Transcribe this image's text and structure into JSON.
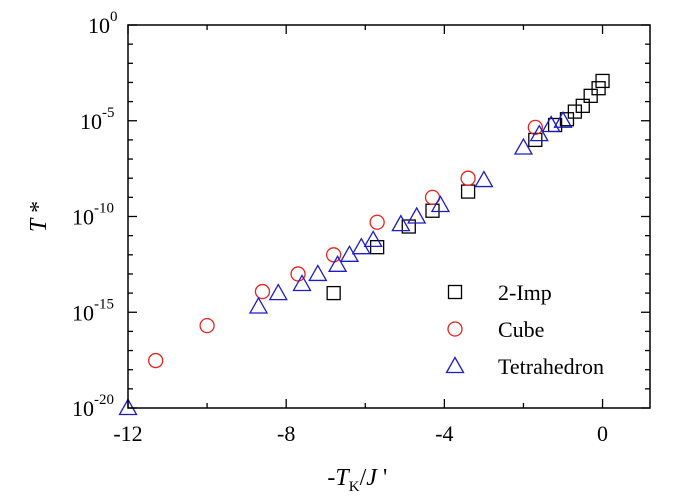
{
  "chart_data": {
    "type": "scatter",
    "title": "",
    "xlabel": "-T_K/J '",
    "ylabel": "T *",
    "xlabel_parts": {
      "prefix": "-",
      "var": "T",
      "sub": "K",
      "suffix": "/",
      "var2": "J",
      "prime": " '"
    },
    "ylabel_parts": {
      "var": "T",
      "suffix": " *"
    },
    "xlim": [
      -12,
      1.2
    ],
    "ylim": [
      1e-20,
      1
    ],
    "yscale": "log",
    "x_ticks": [
      {
        "value": -12,
        "label": "-12"
      },
      {
        "value": -8,
        "label": "-8"
      },
      {
        "value": -4,
        "label": "-4"
      },
      {
        "value": 0,
        "label": "0"
      }
    ],
    "y_ticks": [
      {
        "value": 1,
        "base": "10",
        "exp": "0"
      },
      {
        "value": 1e-05,
        "base": "10",
        "exp": "-5"
      },
      {
        "value": 1e-10,
        "base": "10",
        "exp": "-10"
      },
      {
        "value": 1e-15,
        "base": "10",
        "exp": "-15"
      },
      {
        "value": 1e-20,
        "base": "10",
        "exp": "-20"
      }
    ],
    "grid": false,
    "legend_position": "bottom-right",
    "series": [
      {
        "name": "2-Imp",
        "marker": "square",
        "color": "#000000",
        "points": [
          [
            0.0,
            0.0012
          ],
          [
            -0.1,
            0.0005
          ],
          [
            -0.3,
            0.0002
          ],
          [
            -0.5,
            6e-05
          ],
          [
            -0.7,
            3e-05
          ],
          [
            -0.9,
            1.2e-05
          ],
          [
            -1.2,
            6e-06
          ],
          [
            -1.7,
            1e-06
          ],
          [
            -3.4,
            2e-09
          ],
          [
            -4.3,
            2e-10
          ],
          [
            -4.9,
            3e-11
          ],
          [
            -5.7,
            2.5e-12
          ],
          [
            -6.8,
            1e-14
          ]
        ]
      },
      {
        "name": "Cube",
        "marker": "circle",
        "color": "#e8231f",
        "points": [
          [
            -1.7,
            4.5e-06
          ],
          [
            -3.4,
            1e-08
          ],
          [
            -4.3,
            1e-09
          ],
          [
            -5.7,
            5e-11
          ],
          [
            -6.8,
            1e-12
          ],
          [
            -7.7,
            1e-13
          ],
          [
            -8.6,
            1.2e-14
          ],
          [
            -10.0,
            2e-16
          ],
          [
            -11.3,
            3e-18
          ]
        ]
      },
      {
        "name": "Tetrahedron",
        "marker": "triangle",
        "color": "#1c1cc8",
        "points": [
          [
            -1.0,
            1e-05
          ],
          [
            -1.3,
            6e-06
          ],
          [
            -1.6,
            2e-06
          ],
          [
            -2.0,
            4e-07
          ],
          [
            -3.0,
            8e-09
          ],
          [
            -4.1,
            4e-10
          ],
          [
            -4.7,
            1e-10
          ],
          [
            -5.1,
            4e-11
          ],
          [
            -5.8,
            6e-12
          ],
          [
            -6.1,
            2.5e-12
          ],
          [
            -6.4,
            1e-12
          ],
          [
            -6.7,
            3e-13
          ],
          [
            -7.2,
            1e-13
          ],
          [
            -7.6,
            3e-14
          ],
          [
            -8.2,
            1e-14
          ],
          [
            -8.7,
            2e-15
          ],
          [
            -12.0,
            1e-20
          ]
        ]
      }
    ]
  }
}
